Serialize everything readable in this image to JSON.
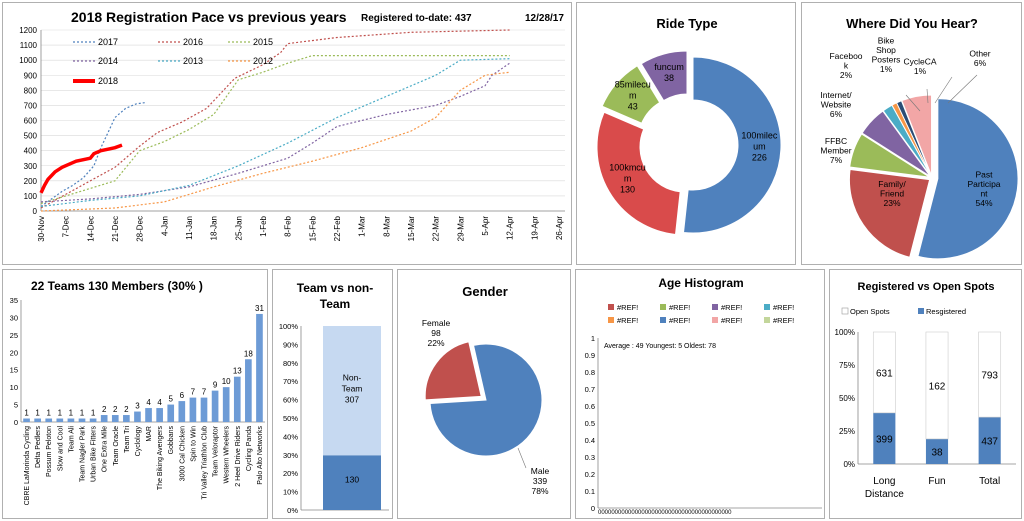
{
  "reg_pace": {
    "title": "2018 Registration Pace vs previous years",
    "registered_label": "Registered to-date: 437",
    "date": "12/28/17",
    "chart_data": {
      "type": "line",
      "x_ticks": [
        "30-Nov",
        "7-Dec",
        "14-Dec",
        "21-Dec",
        "28-Dec",
        "4-Jan",
        "11-Jan",
        "18-Jan",
        "25-Jan",
        "1-Feb",
        "8-Feb",
        "15-Feb",
        "22-Feb",
        "1-Mar",
        "8-Mar",
        "15-Mar",
        "22-Mar",
        "29-Mar",
        "5-Apr",
        "12-Apr",
        "19-Apr",
        "26-Apr"
      ],
      "y_ticks": [
        0,
        100,
        200,
        300,
        400,
        500,
        600,
        700,
        800,
        900,
        1000,
        1100,
        1200
      ],
      "ylim": [
        0,
        1200
      ],
      "series": [
        {
          "name": "2017",
          "color": "#4f81bd",
          "dash": "2,2",
          "points": [
            [
              0,
              30
            ],
            [
              3,
              80
            ],
            [
              6,
              130
            ],
            [
              9,
              170
            ],
            [
              12,
              220
            ],
            [
              15,
              300
            ],
            [
              17,
              420
            ],
            [
              19,
              520
            ],
            [
              21,
              620
            ],
            [
              24,
              680
            ],
            [
              27,
              710
            ],
            [
              30,
              720
            ]
          ]
        },
        {
          "name": "2016",
          "color": "#c0504d",
          "dash": "2,2",
          "points": [
            [
              0,
              20
            ],
            [
              7,
              110
            ],
            [
              14,
              200
            ],
            [
              21,
              290
            ],
            [
              28,
              430
            ],
            [
              33,
              520
            ],
            [
              40,
              590
            ],
            [
              47,
              680
            ],
            [
              55,
              880
            ],
            [
              63,
              970
            ],
            [
              68,
              1050
            ],
            [
              70,
              1110
            ],
            [
              84,
              1150
            ],
            [
              105,
              1185
            ],
            [
              133,
              1200
            ]
          ]
        },
        {
          "name": "2015",
          "color": "#9bbb59",
          "dash": "2,2",
          "points": [
            [
              0,
              50
            ],
            [
              14,
              150
            ],
            [
              21,
              200
            ],
            [
              28,
              400
            ],
            [
              35,
              460
            ],
            [
              42,
              540
            ],
            [
              49,
              640
            ],
            [
              56,
              870
            ],
            [
              63,
              920
            ],
            [
              70,
              980
            ],
            [
              77,
              1030
            ],
            [
              91,
              1030
            ],
            [
              133,
              1030
            ]
          ]
        },
        {
          "name": "2014",
          "color": "#8064a2",
          "dash": "2,2",
          "points": [
            [
              0,
              60
            ],
            [
              14,
              80
            ],
            [
              28,
              110
            ],
            [
              42,
              160
            ],
            [
              56,
              250
            ],
            [
              70,
              350
            ],
            [
              77,
              450
            ],
            [
              84,
              560
            ],
            [
              98,
              640
            ],
            [
              112,
              700
            ],
            [
              119,
              760
            ],
            [
              126,
              830
            ],
            [
              128,
              900
            ],
            [
              133,
              980
            ]
          ]
        },
        {
          "name": "2013",
          "color": "#4bacc6",
          "dash": "2,2",
          "points": [
            [
              0,
              30
            ],
            [
              14,
              70
            ],
            [
              28,
              100
            ],
            [
              42,
              170
            ],
            [
              56,
              300
            ],
            [
              70,
              450
            ],
            [
              84,
              620
            ],
            [
              98,
              760
            ],
            [
              112,
              900
            ],
            [
              119,
              1000
            ],
            [
              133,
              1010
            ]
          ]
        },
        {
          "name": "2012",
          "color": "#f79646",
          "dash": "2,2",
          "points": [
            [
              0,
              0
            ],
            [
              21,
              20
            ],
            [
              35,
              60
            ],
            [
              49,
              160
            ],
            [
              63,
              250
            ],
            [
              77,
              330
            ],
            [
              91,
              420
            ],
            [
              105,
              530
            ],
            [
              112,
              620
            ],
            [
              119,
              800
            ],
            [
              126,
              900
            ],
            [
              133,
              920
            ]
          ]
        },
        {
          "name": "2018",
          "color": "#ff0000",
          "dash": "",
          "points": [
            [
              0,
              120
            ],
            [
              1,
              170
            ],
            [
              2,
              210
            ],
            [
              4,
              260
            ],
            [
              6,
              290
            ],
            [
              8,
              310
            ],
            [
              10,
              330
            ],
            [
              12,
              340
            ],
            [
              14,
              350
            ],
            [
              15,
              380
            ],
            [
              17,
              400
            ],
            [
              19,
              410
            ],
            [
              21,
              420
            ],
            [
              23,
              437
            ]
          ]
        }
      ]
    }
  },
  "ride_type": {
    "title": "Ride Type",
    "chart_data": {
      "type": "pie",
      "slices": [
        {
          "name": "100milecum",
          "label": "100milec\num",
          "value": 226,
          "color": "#4f81bd"
        },
        {
          "name": "100kmcum",
          "label": "100kmcu\nm",
          "value": 130,
          "color": "#d94b4b"
        },
        {
          "name": "85milecum",
          "label": "85milecu\nm",
          "value": 43,
          "color": "#9bbb59"
        },
        {
          "name": "funcum",
          "label": "funcum",
          "value": 38,
          "color": "#8064a2"
        }
      ]
    }
  },
  "where_hear": {
    "title": "Where Did You Hear?",
    "chart_data": {
      "type": "pie",
      "slices": [
        {
          "name": "Past Participant",
          "label": "Past\nParticipa\nnt",
          "value": 54,
          "pct": "54%",
          "color": "#4f81bd"
        },
        {
          "name": "Family/ Friend",
          "label": "Family/\nFriend",
          "value": 23,
          "pct": "23%",
          "color": "#c0504d"
        },
        {
          "name": "FFBC Member",
          "label": "FFBC\nMember",
          "value": 7,
          "pct": "7%",
          "color": "#9bbb59"
        },
        {
          "name": "Internet/ Website",
          "label": "Internet/\nWebsite",
          "value": 6,
          "pct": "6%",
          "color": "#8064a2"
        },
        {
          "name": "Facebook",
          "label": "Faceboo\nk",
          "value": 2,
          "pct": "2%",
          "color": "#4bacc6"
        },
        {
          "name": "Bike Shop Posters",
          "label": "Bike\nShop\nPosters",
          "value": 1,
          "pct": "1%",
          "color": "#f79646"
        },
        {
          "name": "CycleCA",
          "label": "CycleCA",
          "value": 1,
          "pct": "1%",
          "color": "#2c4d75"
        },
        {
          "name": "Other",
          "label": "Other",
          "value": 6,
          "pct": "6%",
          "color": "#f2a6a6"
        }
      ]
    }
  },
  "teams": {
    "title": "22 Teams   130 Members    (30% )",
    "chart_data": {
      "type": "bar",
      "categories": [
        "CBRE LaMorinda Cycling",
        "Delta Pedlers",
        "Possum Peloton",
        "Slow and Cool",
        "Team Ali",
        "Team Nagler Park",
        "Urban Bike Fitters",
        "One Extra Mile",
        "Team Oracle",
        "Team Tri",
        "Cyclology",
        "MAR",
        "The Biking Avengers",
        "Gobbans",
        "3000 Cal Chicken",
        "Spin to Win",
        "Tri Valley Triathlon Club",
        "Team Veloraptor",
        "Western Wheelers",
        "2 Heel Drive Riders",
        "Cycling Panda",
        "Palo Alto Networks"
      ],
      "values": [
        1,
        1,
        1,
        1,
        1,
        1,
        1,
        2,
        2,
        2,
        3,
        4,
        4,
        5,
        6,
        7,
        7,
        9,
        10,
        13,
        18,
        31
      ],
      "y_ticks": [
        0,
        5,
        10,
        15,
        20,
        25,
        30,
        35
      ],
      "ylim": [
        0,
        35
      ]
    }
  },
  "team_vs": {
    "title": "Team vs non-Team",
    "title_line1": "Team vs non-",
    "title_line2": "Team",
    "chart_data": {
      "type": "bar",
      "y_ticks": [
        "0%",
        "10%",
        "20%",
        "30%",
        "40%",
        "50%",
        "60%",
        "70%",
        "80%",
        "90%",
        "100%"
      ],
      "series": [
        {
          "name": "Team",
          "value": 130,
          "color": "#4f81bd"
        },
        {
          "name": "Non-Team",
          "label": "Non-\nTeam",
          "value": 307,
          "color": "#c6d9f1"
        }
      ]
    }
  },
  "gender": {
    "title": "Gender",
    "chart_data": {
      "type": "pie",
      "slices": [
        {
          "name": "Female",
          "value": 98,
          "pct": "22%",
          "color": "#c0504d"
        },
        {
          "name": "Male",
          "value": 339,
          "pct": "78%",
          "color": "#4f81bd"
        }
      ]
    }
  },
  "age_hist": {
    "title": "Age Histogram",
    "stats": "Average : 49      Youngest: 5      Oldest: 78",
    "axis_label": "0000000000000000000000000000000000000000",
    "chart_data": {
      "type": "bar",
      "legend": [
        {
          "name": "#REF!",
          "color": "#c0504d"
        },
        {
          "name": "#REF!",
          "color": "#9bbb59"
        },
        {
          "name": "#REF!",
          "color": "#8064a2"
        },
        {
          "name": "#REF!",
          "color": "#4bacc6"
        },
        {
          "name": "#REF!",
          "color": "#f79646"
        },
        {
          "name": "#REF!",
          "color": "#4f81bd"
        },
        {
          "name": "#REF!",
          "color": "#f2a6a6"
        },
        {
          "name": "#REF!",
          "color": "#c3d69b"
        }
      ],
      "y_ticks": [
        "0",
        "0.1",
        "0.2",
        "0.3",
        "0.4",
        "0.5",
        "0.6",
        "0.7",
        "0.8",
        "0.9",
        "1"
      ],
      "ylim": [
        0,
        1
      ]
    }
  },
  "open_spots": {
    "title": "Registered vs Open Spots",
    "chart_data": {
      "type": "bar",
      "legend": [
        {
          "name": "Open Spots",
          "color": "#ffffff"
        },
        {
          "name": "Resgistered",
          "color": "#4f81bd"
        }
      ],
      "y_ticks": [
        "0%",
        "25%",
        "50%",
        "75%",
        "100%"
      ],
      "categories": [
        {
          "name": "Long\nDistance",
          "registered": 399,
          "open": 631
        },
        {
          "name": "Fun",
          "registered": 38,
          "open": 162
        },
        {
          "name": "Total",
          "registered": 437,
          "open": 793
        }
      ]
    }
  }
}
